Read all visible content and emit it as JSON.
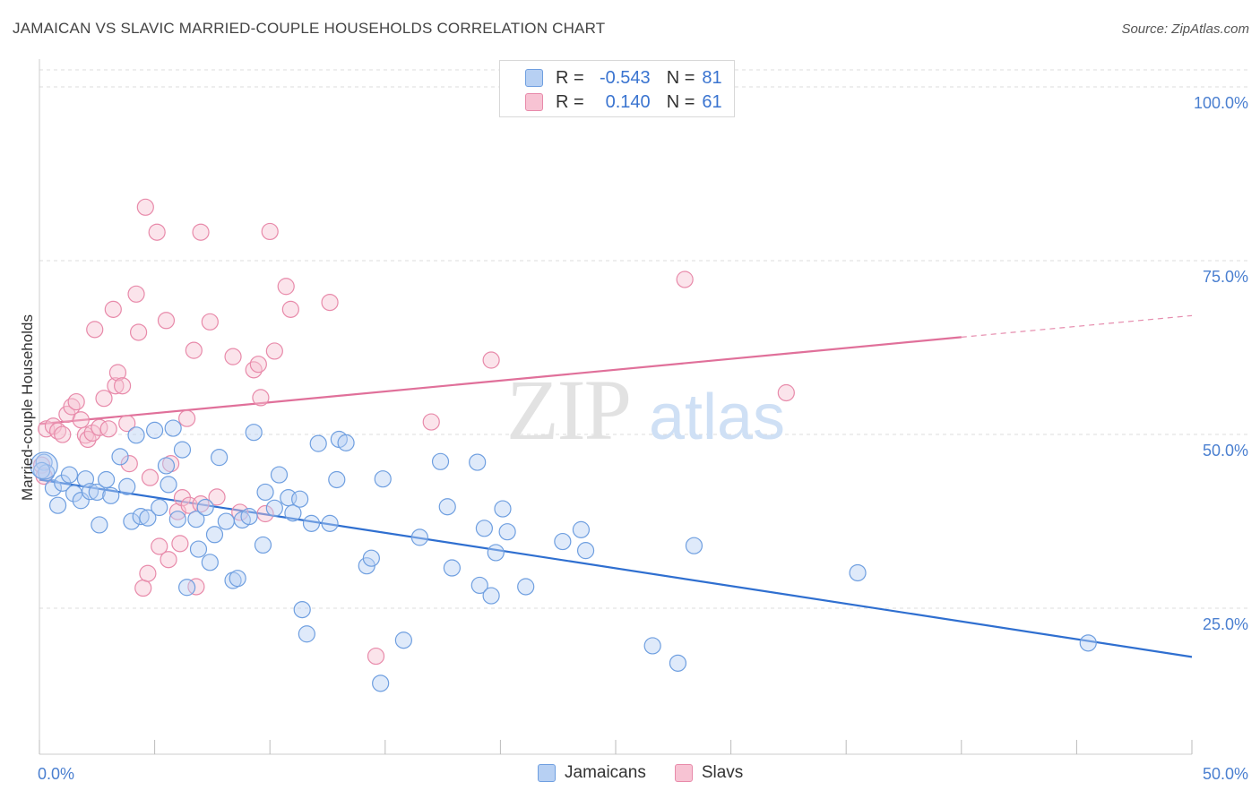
{
  "header": {
    "title": "JAMAICAN VS SLAVIC MARRIED-COUPLE HOUSEHOLDS CORRELATION CHART",
    "source": "Source: ZipAtlas.com"
  },
  "legend": {
    "rows": [
      {
        "r_label": "R =",
        "r_value": "-0.543",
        "n_label": "N =",
        "n_value": "81"
      },
      {
        "r_label": "R =",
        "r_value": "0.140",
        "n_label": "N =",
        "n_value": "61"
      }
    ]
  },
  "watermark": {
    "zip": "ZIP",
    "atlas": "atlas"
  },
  "colors": {
    "jamaicans_fill": "#b7d0f3",
    "jamaicans_stroke": "#6f9fe0",
    "jamaicans_line": "#2f6fd0",
    "slavs_fill": "#f7c3d3",
    "slavs_stroke": "#e88aaa",
    "slavs_line": "#e0709a",
    "grid": "#dcdcdc",
    "tick_text": "#4a7fd0"
  },
  "chart_data": {
    "type": "scatter",
    "title": "JAMAICAN VS SLAVIC MARRIED-COUPLE HOUSEHOLDS CORRELATION CHART",
    "xlabel": "",
    "ylabel": "Married-couple Households",
    "xlim": [
      0,
      50
    ],
    "ylim": [
      4,
      104
    ],
    "x_ticks": [
      "0.0%",
      "50.0%"
    ],
    "y_ticks": [
      {
        "value": 100,
        "label": "100.0%"
      },
      {
        "value": 75,
        "label": "75.0%"
      },
      {
        "value": 50,
        "label": "50.0%"
      },
      {
        "value": 25,
        "label": "25.0%"
      }
    ],
    "grid": "horizontal dashed",
    "legend_position": "bottom",
    "series": [
      {
        "name": "Jamaicans",
        "r": -0.543,
        "n": 81,
        "trend": {
          "x": [
            0,
            50
          ],
          "y": [
            43.5,
            18.0
          ]
        },
        "points": [
          [
            0.2,
            46.0
          ],
          [
            0.3,
            44.5
          ],
          [
            0.6,
            42.3
          ],
          [
            0.8,
            39.8
          ],
          [
            1.0,
            43.0
          ],
          [
            1.3,
            44.2
          ],
          [
            1.5,
            41.5
          ],
          [
            1.8,
            40.5
          ],
          [
            2.0,
            43.6
          ],
          [
            2.2,
            41.8
          ],
          [
            2.5,
            41.7
          ],
          [
            2.6,
            37.0
          ],
          [
            2.9,
            43.5
          ],
          [
            3.1,
            41.2
          ],
          [
            3.5,
            46.8
          ],
          [
            3.8,
            42.5
          ],
          [
            4.0,
            37.5
          ],
          [
            4.2,
            49.9
          ],
          [
            4.4,
            38.2
          ],
          [
            4.7,
            38.0
          ],
          [
            5.0,
            50.6
          ],
          [
            5.2,
            39.5
          ],
          [
            5.5,
            45.5
          ],
          [
            5.6,
            42.8
          ],
          [
            5.8,
            50.9
          ],
          [
            6.0,
            37.8
          ],
          [
            6.2,
            47.8
          ],
          [
            6.4,
            28.0
          ],
          [
            6.8,
            37.8
          ],
          [
            6.9,
            33.5
          ],
          [
            7.2,
            39.5
          ],
          [
            7.4,
            31.6
          ],
          [
            7.6,
            35.6
          ],
          [
            7.8,
            46.7
          ],
          [
            8.1,
            37.5
          ],
          [
            8.4,
            29.0
          ],
          [
            8.6,
            29.3
          ],
          [
            8.8,
            37.7
          ],
          [
            9.1,
            38.2
          ],
          [
            9.3,
            50.3
          ],
          [
            9.7,
            34.1
          ],
          [
            9.8,
            41.7
          ],
          [
            10.2,
            39.4
          ],
          [
            10.4,
            44.2
          ],
          [
            10.8,
            40.9
          ],
          [
            11.0,
            38.7
          ],
          [
            11.3,
            40.7
          ],
          [
            11.4,
            24.8
          ],
          [
            11.6,
            21.3
          ],
          [
            11.8,
            37.2
          ],
          [
            12.1,
            48.7
          ],
          [
            12.6,
            37.2
          ],
          [
            12.9,
            43.5
          ],
          [
            13.0,
            49.3
          ],
          [
            13.3,
            48.8
          ],
          [
            14.2,
            31.1
          ],
          [
            14.4,
            32.2
          ],
          [
            14.8,
            14.2
          ],
          [
            14.9,
            43.6
          ],
          [
            15.8,
            20.4
          ],
          [
            16.5,
            35.2
          ],
          [
            17.4,
            46.1
          ],
          [
            17.7,
            39.6
          ],
          [
            17.9,
            30.8
          ],
          [
            19.0,
            46.0
          ],
          [
            19.1,
            28.3
          ],
          [
            19.3,
            36.5
          ],
          [
            19.6,
            26.8
          ],
          [
            19.8,
            33.0
          ],
          [
            20.1,
            39.3
          ],
          [
            20.3,
            36.0
          ],
          [
            21.1,
            28.1
          ],
          [
            22.7,
            34.6
          ],
          [
            23.5,
            36.3
          ],
          [
            23.7,
            33.3
          ],
          [
            26.6,
            19.6
          ],
          [
            27.7,
            17.1
          ],
          [
            28.4,
            34.0
          ],
          [
            35.5,
            30.1
          ],
          [
            45.5,
            20.0
          ],
          [
            0.1,
            44.8
          ]
        ]
      },
      {
        "name": "Slavs",
        "r": 0.14,
        "n": 61,
        "trend": {
          "x": [
            0,
            40
          ],
          "y": [
            51.5,
            64.0
          ]
        },
        "trend_dashed": {
          "x": [
            40,
            50
          ],
          "y": [
            64.0,
            67.1
          ]
        },
        "points": [
          [
            0.1,
            45.6
          ],
          [
            0.2,
            44.0
          ],
          [
            0.3,
            50.8
          ],
          [
            0.6,
            51.2
          ],
          [
            0.8,
            50.5
          ],
          [
            1.0,
            50.0
          ],
          [
            1.2,
            52.9
          ],
          [
            1.4,
            54.0
          ],
          [
            1.6,
            54.7
          ],
          [
            1.8,
            52.1
          ],
          [
            2.0,
            49.9
          ],
          [
            2.1,
            49.3
          ],
          [
            2.3,
            50.2
          ],
          [
            2.4,
            65.1
          ],
          [
            2.6,
            51.0
          ],
          [
            2.8,
            55.2
          ],
          [
            3.0,
            50.8
          ],
          [
            3.2,
            68.0
          ],
          [
            3.3,
            57.0
          ],
          [
            3.4,
            58.9
          ],
          [
            3.6,
            57.0
          ],
          [
            3.8,
            51.6
          ],
          [
            3.9,
            45.8
          ],
          [
            4.2,
            70.2
          ],
          [
            4.3,
            64.7
          ],
          [
            4.5,
            27.9
          ],
          [
            4.6,
            82.7
          ],
          [
            4.7,
            30.0
          ],
          [
            4.8,
            43.8
          ],
          [
            5.1,
            79.1
          ],
          [
            5.2,
            33.9
          ],
          [
            5.5,
            66.4
          ],
          [
            5.6,
            32.0
          ],
          [
            5.7,
            45.8
          ],
          [
            6.0,
            38.9
          ],
          [
            6.1,
            34.3
          ],
          [
            6.2,
            40.9
          ],
          [
            6.4,
            52.3
          ],
          [
            6.5,
            39.8
          ],
          [
            6.7,
            62.1
          ],
          [
            6.8,
            28.1
          ],
          [
            7.0,
            79.1
          ],
          [
            7.4,
            66.2
          ],
          [
            7.7,
            41.0
          ],
          [
            8.4,
            61.2
          ],
          [
            8.7,
            38.8
          ],
          [
            9.3,
            59.3
          ],
          [
            9.5,
            60.1
          ],
          [
            9.6,
            55.3
          ],
          [
            9.8,
            38.6
          ],
          [
            10.0,
            79.2
          ],
          [
            10.2,
            62.0
          ],
          [
            10.7,
            71.3
          ],
          [
            10.9,
            68.0
          ],
          [
            12.6,
            69.0
          ],
          [
            14.6,
            18.1
          ],
          [
            17.0,
            51.8
          ],
          [
            19.6,
            60.7
          ],
          [
            28.0,
            72.3
          ],
          [
            32.4,
            56.0
          ],
          [
            7.0,
            40.0
          ]
        ]
      }
    ]
  }
}
